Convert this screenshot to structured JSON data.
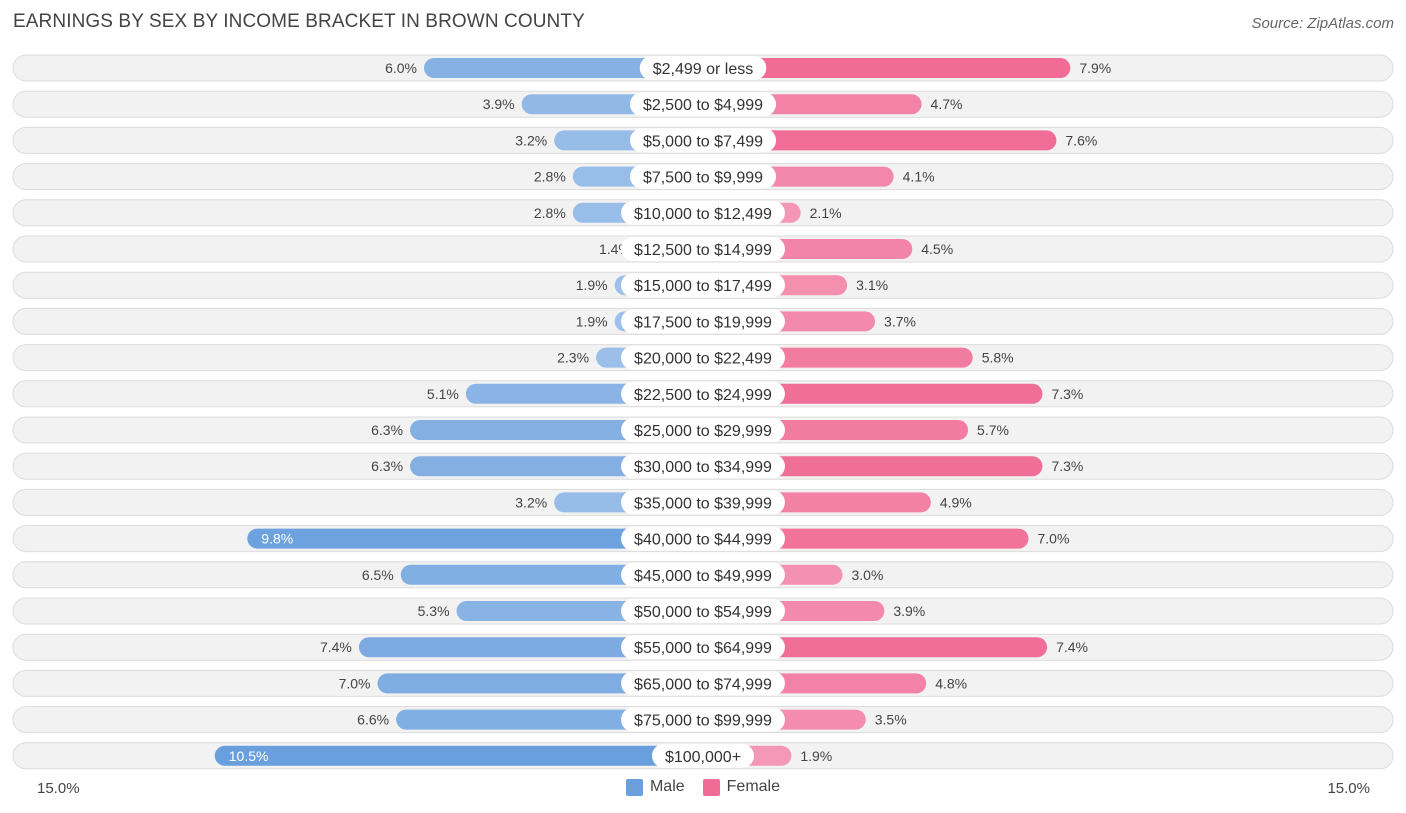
{
  "title": "EARNINGS BY SEX BY INCOME BRACKET IN BROWN COUNTY",
  "source": "Source: ZipAtlas.com",
  "colors": {
    "male_strong": "#6a9fdd",
    "male_light": "#a9c8ec",
    "female_strong": "#f06b96",
    "female_light": "#f6a6c1",
    "row_bg": "#f2f2f2",
    "row_border": "#dcdcdc",
    "text": "#444444"
  },
  "legend": {
    "male": "Male",
    "female": "Female"
  },
  "axis": {
    "left_label": "15.0%",
    "right_label": "15.0%"
  },
  "chart_data": {
    "type": "bar",
    "orientation": "horizontal-diverging",
    "title": "EARNINGS BY SEX BY INCOME BRACKET IN BROWN COUNTY",
    "xlim": [
      -15.0,
      15.0
    ],
    "categories": [
      "$2,499 or less",
      "$2,500 to $4,999",
      "$5,000 to $7,499",
      "$7,500 to $9,999",
      "$10,000 to $12,499",
      "$12,500 to $14,999",
      "$15,000 to $17,499",
      "$17,500 to $19,999",
      "$20,000 to $22,499",
      "$22,500 to $24,999",
      "$25,000 to $29,999",
      "$30,000 to $34,999",
      "$35,000 to $39,999",
      "$40,000 to $44,999",
      "$45,000 to $49,999",
      "$50,000 to $54,999",
      "$55,000 to $64,999",
      "$65,000 to $74,999",
      "$75,000 to $99,999",
      "$100,000+"
    ],
    "series": [
      {
        "name": "Male",
        "values": [
          6.0,
          3.9,
          3.2,
          2.8,
          2.8,
          1.4,
          1.9,
          1.9,
          2.3,
          5.1,
          6.3,
          6.3,
          3.2,
          9.8,
          6.5,
          5.3,
          7.4,
          7.0,
          6.6,
          10.5
        ],
        "labels": [
          "6.0%",
          "3.9%",
          "3.2%",
          "2.8%",
          "2.8%",
          "1.4%",
          "1.9%",
          "1.9%",
          "2.3%",
          "5.1%",
          "6.3%",
          "6.3%",
          "3.2%",
          "9.8%",
          "6.5%",
          "5.3%",
          "7.4%",
          "7.0%",
          "6.6%",
          "10.5%"
        ]
      },
      {
        "name": "Female",
        "values": [
          7.9,
          4.7,
          7.6,
          4.1,
          2.1,
          4.5,
          3.1,
          3.7,
          5.8,
          7.3,
          5.7,
          7.3,
          4.9,
          7.0,
          3.0,
          3.9,
          7.4,
          4.8,
          3.5,
          1.9
        ],
        "labels": [
          "7.9%",
          "4.7%",
          "7.6%",
          "4.1%",
          "2.1%",
          "4.5%",
          "3.1%",
          "3.7%",
          "5.8%",
          "7.3%",
          "5.7%",
          "7.3%",
          "4.9%",
          "7.0%",
          "3.0%",
          "3.9%",
          "7.4%",
          "4.8%",
          "3.5%",
          "1.9%"
        ]
      }
    ]
  }
}
